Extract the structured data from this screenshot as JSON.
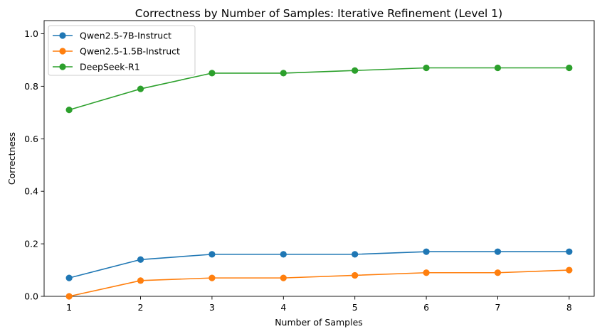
{
  "chart_data": {
    "type": "line",
    "title": "Correctness by Number of Samples: Iterative Refinement (Level 1)",
    "xlabel": "Number of Samples",
    "ylabel": "Correctness",
    "x": [
      1,
      2,
      3,
      4,
      5,
      6,
      7,
      8
    ],
    "xticks": [
      "1",
      "2",
      "3",
      "4",
      "5",
      "6",
      "7",
      "8"
    ],
    "yticks": [
      "0.0",
      "0.2",
      "0.4",
      "0.6",
      "0.8",
      "1.0"
    ],
    "xlim": [
      0.65,
      8.35
    ],
    "ylim": [
      0,
      1.05
    ],
    "grid": false,
    "legend_position": "top-left",
    "series": [
      {
        "name": "Qwen2.5-7B-Instruct",
        "color": "#1f77b4",
        "values": [
          0.07,
          0.14,
          0.16,
          0.16,
          0.16,
          0.17,
          0.17,
          0.17
        ]
      },
      {
        "name": "Qwen2.5-1.5B-Instruct",
        "color": "#ff7f0e",
        "values": [
          0.0,
          0.06,
          0.07,
          0.07,
          0.08,
          0.09,
          0.09,
          0.1
        ]
      },
      {
        "name": "DeepSeek-R1",
        "color": "#2ca02c",
        "values": [
          0.71,
          0.79,
          0.85,
          0.85,
          0.86,
          0.87,
          0.87,
          0.87
        ]
      }
    ]
  }
}
